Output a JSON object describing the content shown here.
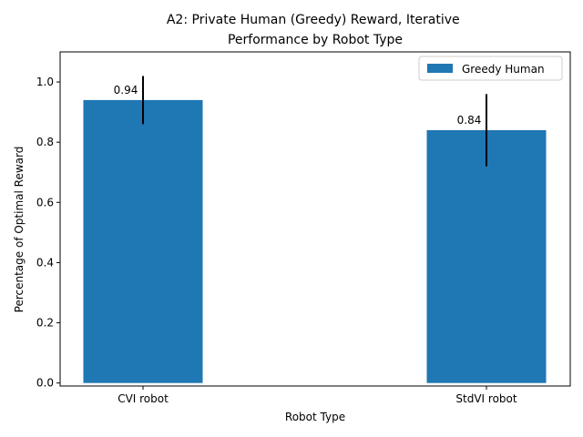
{
  "chart_data": {
    "type": "bar",
    "title": "A2: Private Human (Greedy) Reward, Iterative\nPerformance by Robot Type",
    "xlabel": "Robot Type",
    "ylabel": "Percentage of Optimal Reward",
    "categories": [
      "CVI robot",
      "StdVI robot"
    ],
    "series": [
      {
        "name": "Greedy Human",
        "values": [
          0.94,
          0.84
        ],
        "errors": [
          0.08,
          0.12
        ],
        "labels": [
          "0.94",
          "0.84"
        ]
      }
    ],
    "ylim": [
      -0.01,
      1.1
    ],
    "yticks": [
      0.0,
      0.2,
      0.4,
      0.6,
      0.8,
      1.0
    ],
    "ytick_labels": [
      "0.0",
      "0.2",
      "0.4",
      "0.6",
      "0.8",
      "1.0"
    ],
    "grid": false,
    "legend_position": "top-right",
    "colors": {
      "bar": "#1f77b4",
      "error": "#000000",
      "axis": "#000000"
    }
  }
}
